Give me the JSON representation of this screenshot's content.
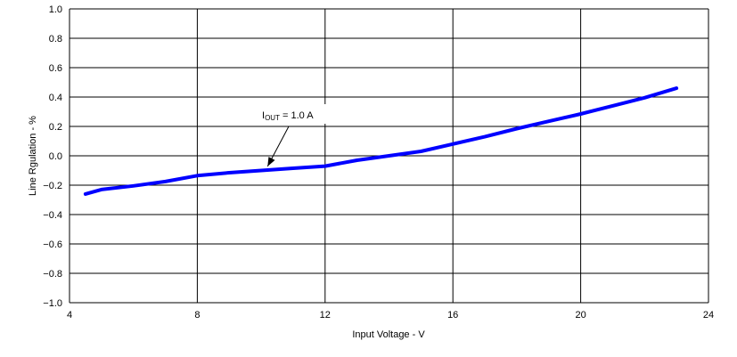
{
  "chart_data": {
    "type": "line",
    "title": "",
    "xlabel": "Input Voltage - V",
    "ylabel": "Line Rgulation - %",
    "xlim": [
      4,
      24
    ],
    "ylim": [
      -1.0,
      1.0
    ],
    "xticks": [
      "4",
      "8",
      "12",
      "16",
      "20",
      "24"
    ],
    "yticks": [
      "1.0",
      "0.8",
      "0.6",
      "0.4",
      "0.2",
      "0.0",
      "−0.2",
      "−0.4",
      "−0.6",
      "−0.8",
      "−1.0"
    ],
    "grid": true,
    "series": [
      {
        "color": "#0000ff",
        "x": [
          4.5,
          5,
          6,
          7,
          8,
          9,
          10,
          11,
          12,
          13,
          14,
          15,
          16,
          17,
          18,
          19,
          20,
          21,
          22,
          23
        ],
        "y": [
          -0.26,
          -0.23,
          -0.205,
          -0.175,
          -0.135,
          -0.115,
          -0.1,
          -0.085,
          -0.07,
          -0.03,
          0.0,
          0.03,
          0.08,
          0.13,
          0.185,
          0.235,
          0.285,
          0.34,
          0.395,
          0.46
        ]
      }
    ],
    "annotation": {
      "main": "I",
      "sub": "OUT",
      "rest": " = 1.0 A",
      "points_to": {
        "x": 10.2,
        "y": -0.09
      }
    }
  }
}
